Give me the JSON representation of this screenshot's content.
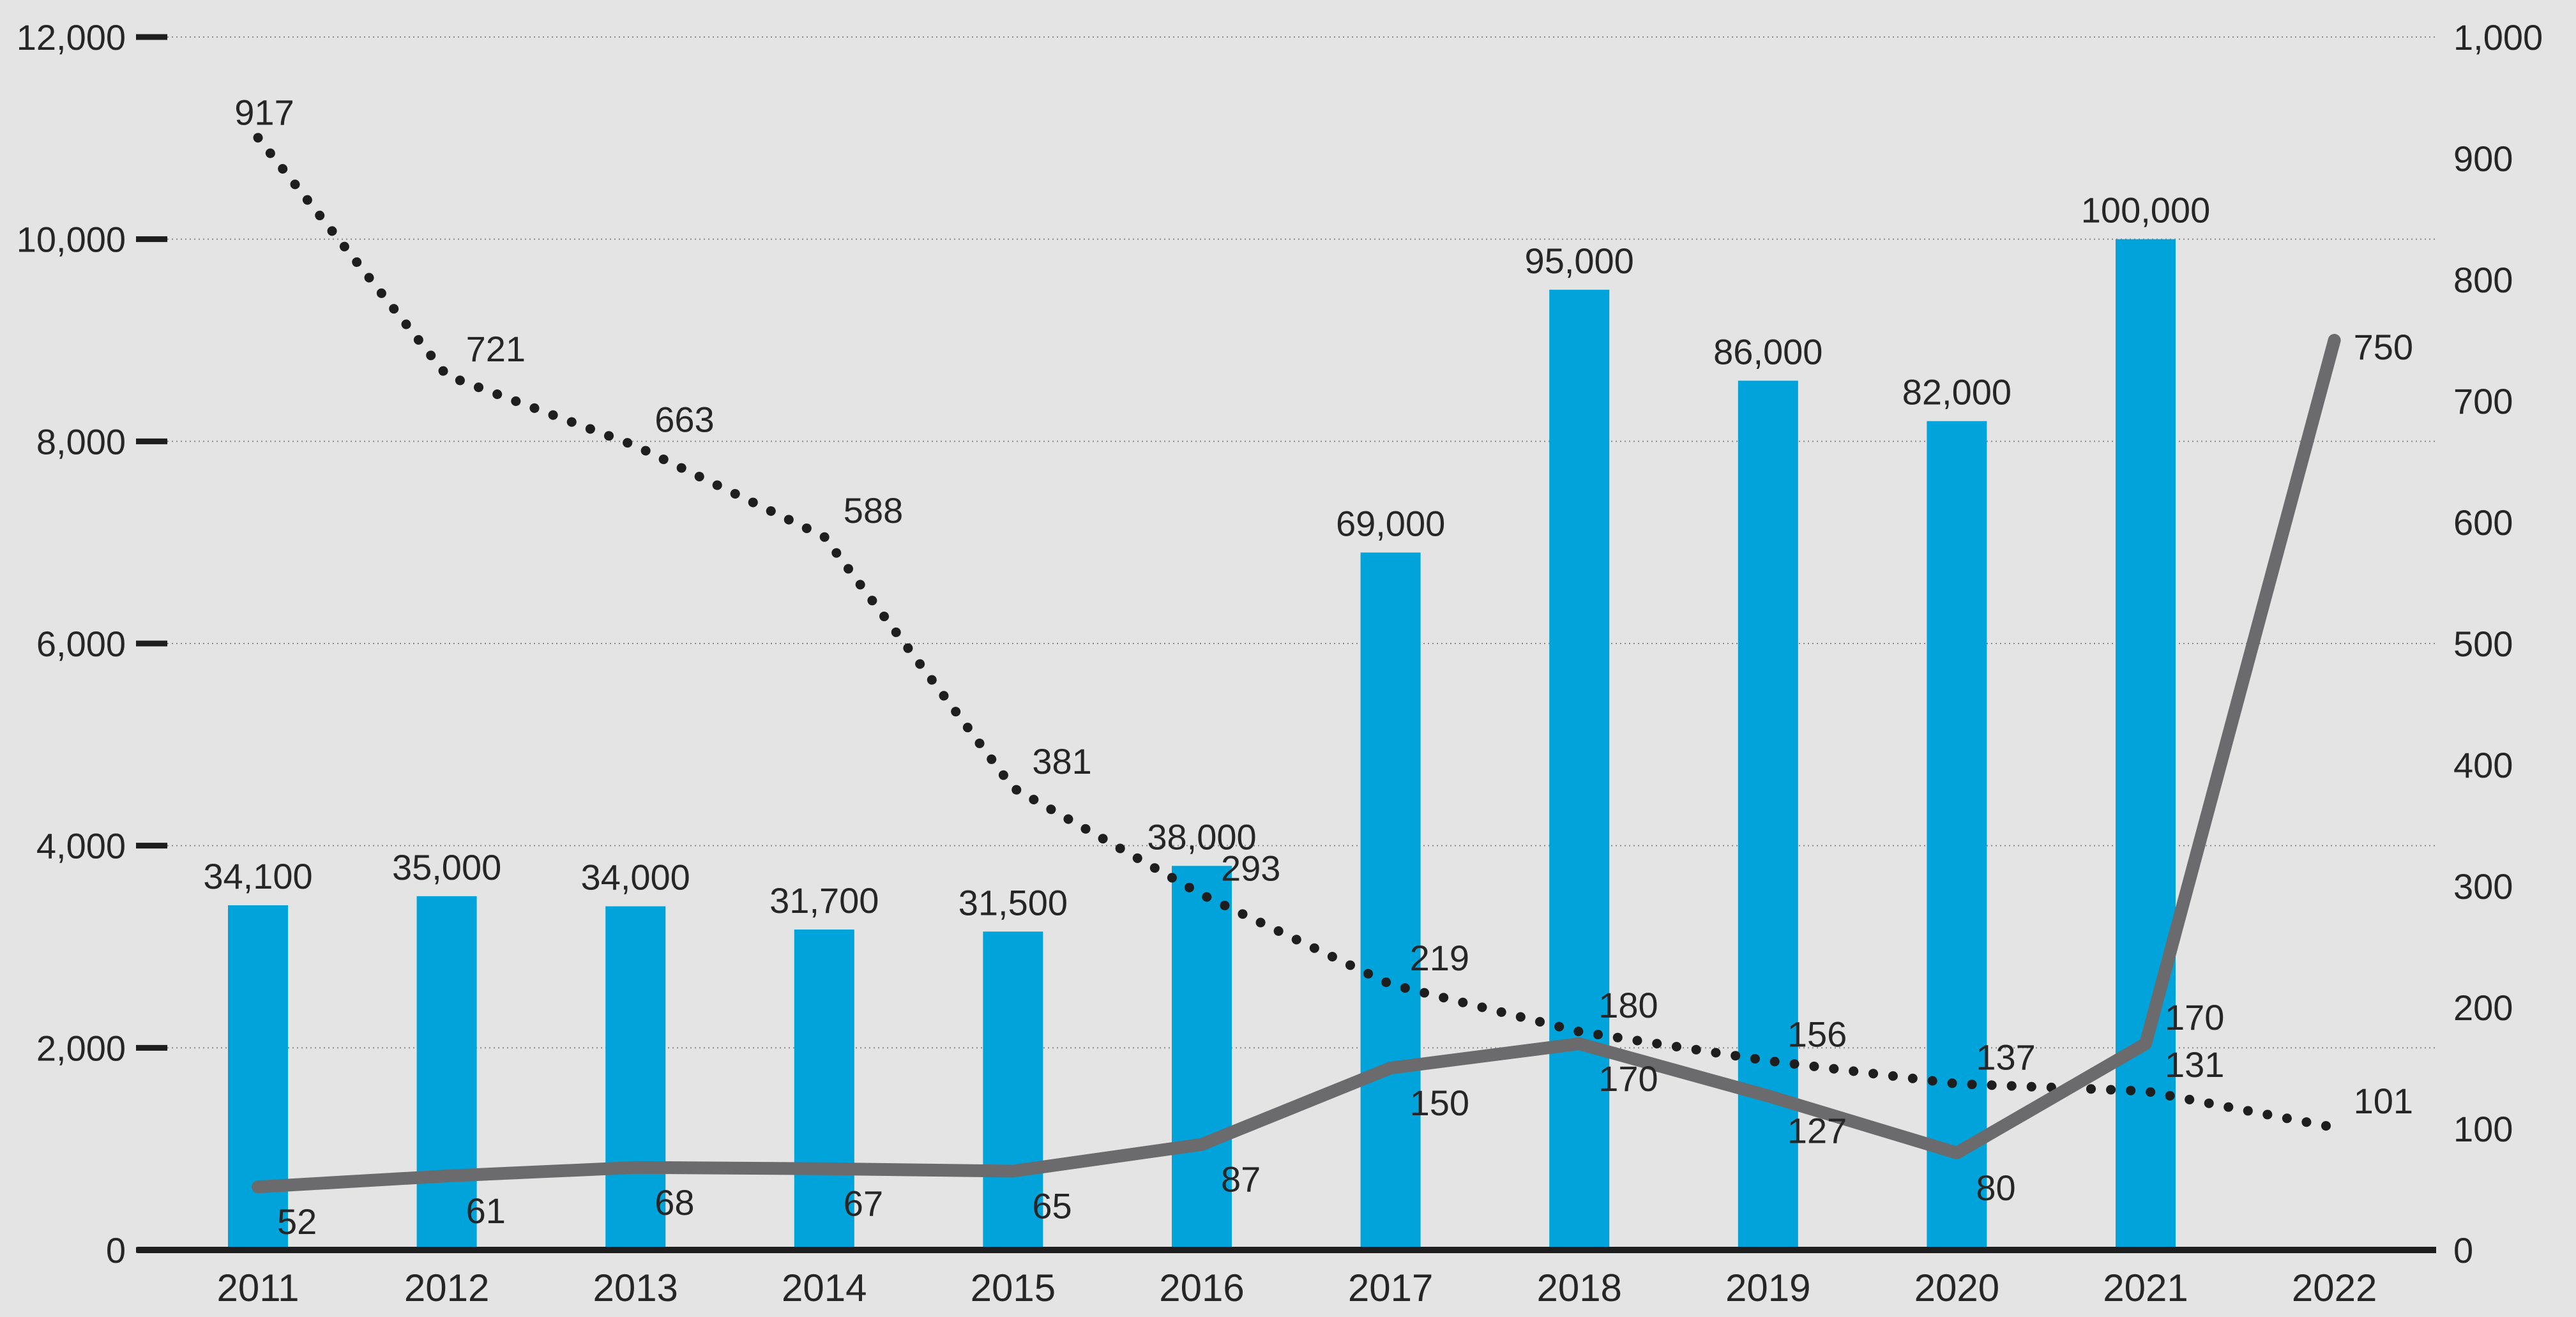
{
  "colors": {
    "background": "#e4e4e4",
    "bar": "#00a3da",
    "solid_line": "#6b6b6d",
    "dotted_line": "#1e1e1e",
    "text": "#262626"
  },
  "chart_data": {
    "type": "bar",
    "categories": [
      "2011",
      "2012",
      "2013",
      "2014",
      "2015",
      "2016",
      "2017",
      "2018",
      "2019",
      "2020",
      "2021",
      "2022"
    ],
    "series": [
      {
        "type": "bar",
        "axis": "left",
        "values": [
          3410,
          3500,
          3400,
          3170,
          3150,
          3800,
          6900,
          9500,
          8600,
          8200,
          10000,
          null
        ],
        "data_labels": [
          "34,100",
          "35,000",
          "34,000",
          "31,700",
          "31,500",
          "38,000",
          "69,000",
          "95,000",
          "86,000",
          "82,000",
          "100,000",
          ""
        ]
      },
      {
        "type": "line",
        "style": "dotted",
        "axis": "right",
        "values": [
          917,
          721,
          663,
          588,
          381,
          293,
          219,
          180,
          156,
          137,
          131,
          101
        ],
        "data_labels": [
          "917",
          "721",
          "663",
          "588",
          "381",
          "293",
          "219",
          "180",
          "156",
          "137",
          "131",
          "101"
        ]
      },
      {
        "type": "line",
        "style": "solid",
        "axis": "right",
        "values": [
          52,
          61,
          68,
          67,
          65,
          87,
          150,
          170,
          127,
          80,
          170,
          750
        ],
        "data_labels": [
          "52",
          "61",
          "68",
          "67",
          "65",
          "87",
          "150",
          "170",
          "127",
          "80",
          "170",
          "750"
        ]
      }
    ],
    "y_left": {
      "ylim": [
        0,
        12000
      ],
      "ticks": [
        0,
        2000,
        4000,
        6000,
        8000,
        10000,
        12000
      ],
      "tick_labels": [
        "0",
        "2,000",
        "4,000",
        "6,000",
        "8,000",
        "10,000",
        "12,000"
      ]
    },
    "y_right": {
      "ylim": [
        0,
        1000
      ],
      "ticks": [
        0,
        100,
        200,
        300,
        400,
        500,
        600,
        700,
        800,
        900,
        1000
      ],
      "tick_labels": [
        "0",
        "100",
        "200",
        "300",
        "400",
        "500",
        "600",
        "700",
        "800",
        "900",
        "1,000"
      ]
    },
    "grid": true,
    "legend": "none",
    "title": "",
    "xlabel": "",
    "ylabel": ""
  }
}
